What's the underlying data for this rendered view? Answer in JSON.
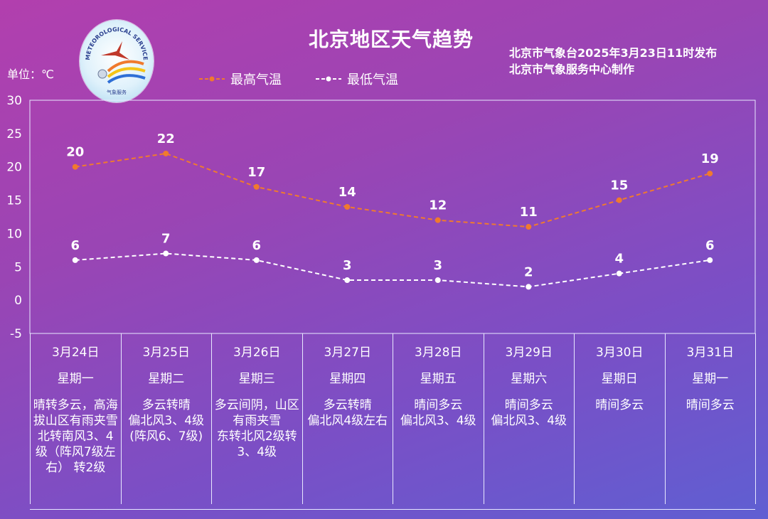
{
  "header": {
    "title": "北京地区天气趋势",
    "publisher_line1": "北京市气象台2025年3月23日11时发布",
    "publisher_line2": "北京市气象服务中心制作",
    "unit": "单位：℃"
  },
  "logo": {
    "ring_text": "METEOROLOGICAL SERVICE",
    "bottom_text": "气象服务"
  },
  "colors": {
    "high_line": "#f07a2e",
    "low_line": "#ffffff",
    "grid": "#e8e8ff"
  },
  "chart_data": {
    "type": "line",
    "title": "北京地区天气趋势",
    "ylabel": "单位：℃",
    "ylim": [
      -5,
      30
    ],
    "yticks": [
      30,
      25,
      20,
      15,
      10,
      5,
      0,
      -5
    ],
    "categories": [
      "3月24日",
      "3月25日",
      "3月26日",
      "3月27日",
      "3月28日",
      "3月29日",
      "3月30日",
      "3月31日"
    ],
    "series": [
      {
        "name": "最高气温",
        "values": [
          20,
          22,
          17,
          14,
          12,
          11,
          15,
          19
        ],
        "color": "#f07a2e"
      },
      {
        "name": "最低气温",
        "values": [
          6,
          7,
          6,
          3,
          3,
          2,
          4,
          6
        ],
        "color": "#ffffff"
      }
    ],
    "legend_position": "top-left",
    "line_style": "dashed"
  },
  "days": [
    {
      "date": "3月24日",
      "weekday": "星期一",
      "desc": "晴转多云，高海拔山区有雨夹雪\n北转南风3、4级（阵风7级左右） 转2级"
    },
    {
      "date": "3月25日",
      "weekday": "星期二",
      "desc": "多云转晴\n偏北风3、4级\n(阵风6、7级)"
    },
    {
      "date": "3月26日",
      "weekday": "星期三",
      "desc": "多云间阴，山区有雨夹雪\n东转北风2级转3、4级"
    },
    {
      "date": "3月27日",
      "weekday": "星期四",
      "desc": "多云转晴\n偏北风4级左右"
    },
    {
      "date": "3月28日",
      "weekday": "星期五",
      "desc": "晴间多云\n偏北风3、4级"
    },
    {
      "date": "3月29日",
      "weekday": "星期六",
      "desc": "晴间多云\n偏北风3、4级"
    },
    {
      "date": "3月30日",
      "weekday": "星期日",
      "desc": "晴间多云"
    },
    {
      "date": "3月31日",
      "weekday": "星期一",
      "desc": "晴间多云"
    }
  ]
}
